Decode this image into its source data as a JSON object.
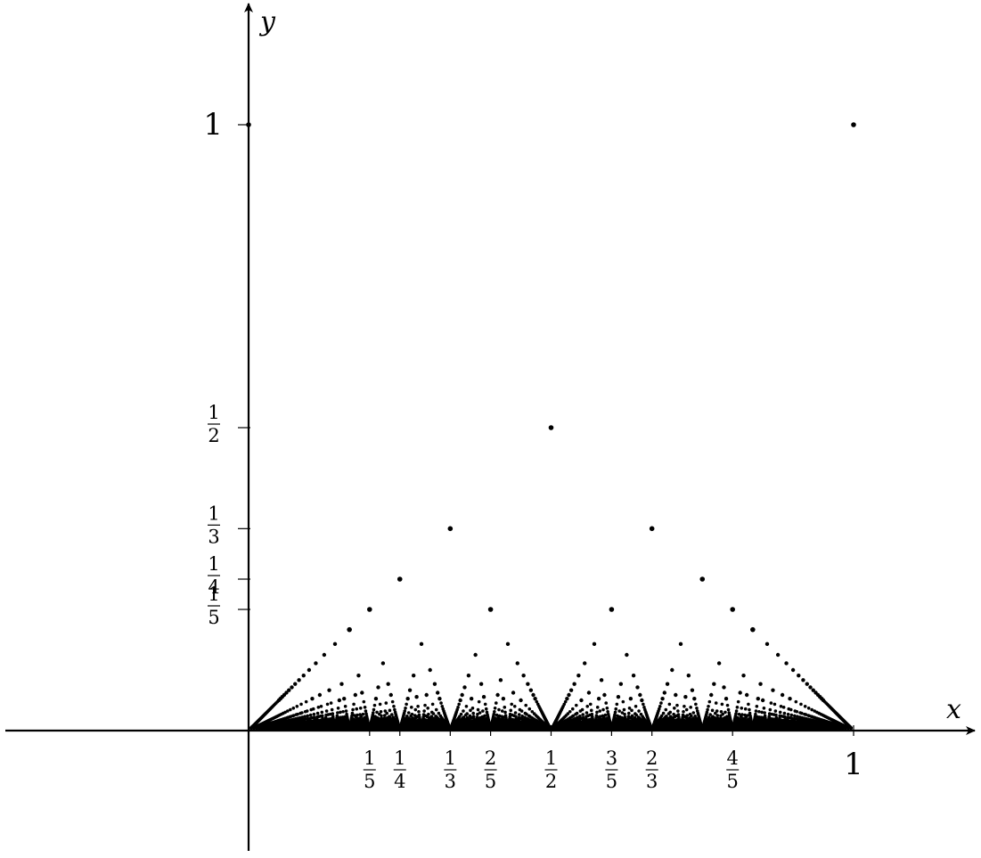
{
  "chart_data": {
    "type": "scatter",
    "title": "",
    "xlabel": "x",
    "ylabel": "y",
    "xlim": [
      -0.4,
      1.2
    ],
    "ylim": [
      -0.2,
      1.2
    ],
    "grid": false,
    "legend": "none",
    "function": "Thomae's function: f(p/q) = 1/q for rationals in lowest terms",
    "max_denominator": 240,
    "point_color": "#000000",
    "x_ticks": [
      {
        "value": 0.2,
        "num": "1",
        "den": "5"
      },
      {
        "value": 0.25,
        "num": "1",
        "den": "4"
      },
      {
        "value": 0.3333333,
        "num": "1",
        "den": "3"
      },
      {
        "value": 0.4,
        "num": "2",
        "den": "5"
      },
      {
        "value": 0.5,
        "num": "1",
        "den": "2"
      },
      {
        "value": 0.6,
        "num": "3",
        "den": "5"
      },
      {
        "value": 0.6666667,
        "num": "2",
        "den": "3"
      },
      {
        "value": 0.8,
        "num": "4",
        "den": "5"
      },
      {
        "value": 1.0,
        "label": "1"
      }
    ],
    "y_ticks": [
      {
        "value": 0.5,
        "num": "1",
        "den": "2"
      },
      {
        "value": 0.3333333,
        "num": "1",
        "den": "3"
      },
      {
        "value": 0.25,
        "num": "1",
        "den": "4"
      },
      {
        "value": 0.2,
        "num": "1",
        "den": "5"
      },
      {
        "value": 1.0,
        "label": "1"
      }
    ]
  }
}
